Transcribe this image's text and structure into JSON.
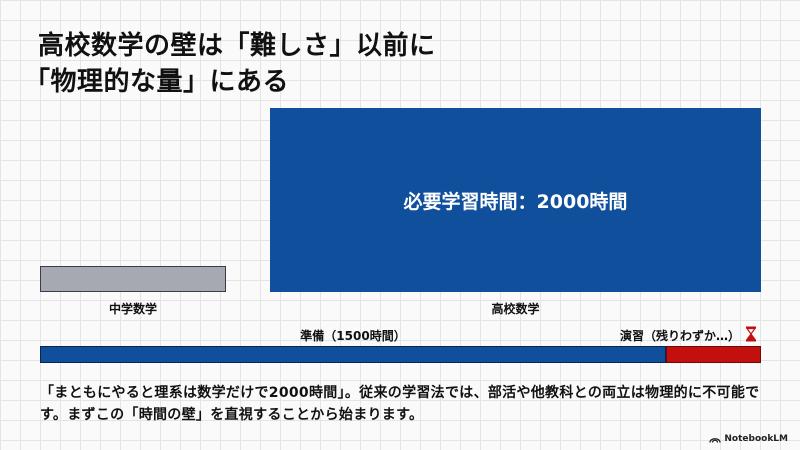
{
  "title": {
    "line1": "高校数学の壁は「難しさ」以前に",
    "line2": "「物理的な量」にある"
  },
  "chart": {
    "high_box_label": "必要学習時間：2000時間",
    "middle_caption": "中学数学",
    "high_caption": "高校数学",
    "prep_caption": "準備（1500時間）",
    "exercise_caption": "演習（残りわずか…）",
    "hourglass_icon": "hourglass-icon",
    "colors": {
      "blue": "#0f4f9c",
      "red": "#c40f0f",
      "gray": "#a6a9b1"
    }
  },
  "chart_data": {
    "type": "bar",
    "categories": [
      "中学数学",
      "高校数学"
    ],
    "values": [
      500,
      2000
    ],
    "breakdown": {
      "total": 2000,
      "segments": [
        {
          "name": "準備（1500時間）",
          "value": 1500
        },
        {
          "name": "演習（残りわずか…）",
          "value": 500
        }
      ]
    }
  },
  "description": "「まともにやると理系は数学だけで2000時間」。従来の学習法では、部活や他教科との両立は物理的に不可能です。まずこの「時間の壁」を直視することから始まります。",
  "brand": "NotebookLM"
}
